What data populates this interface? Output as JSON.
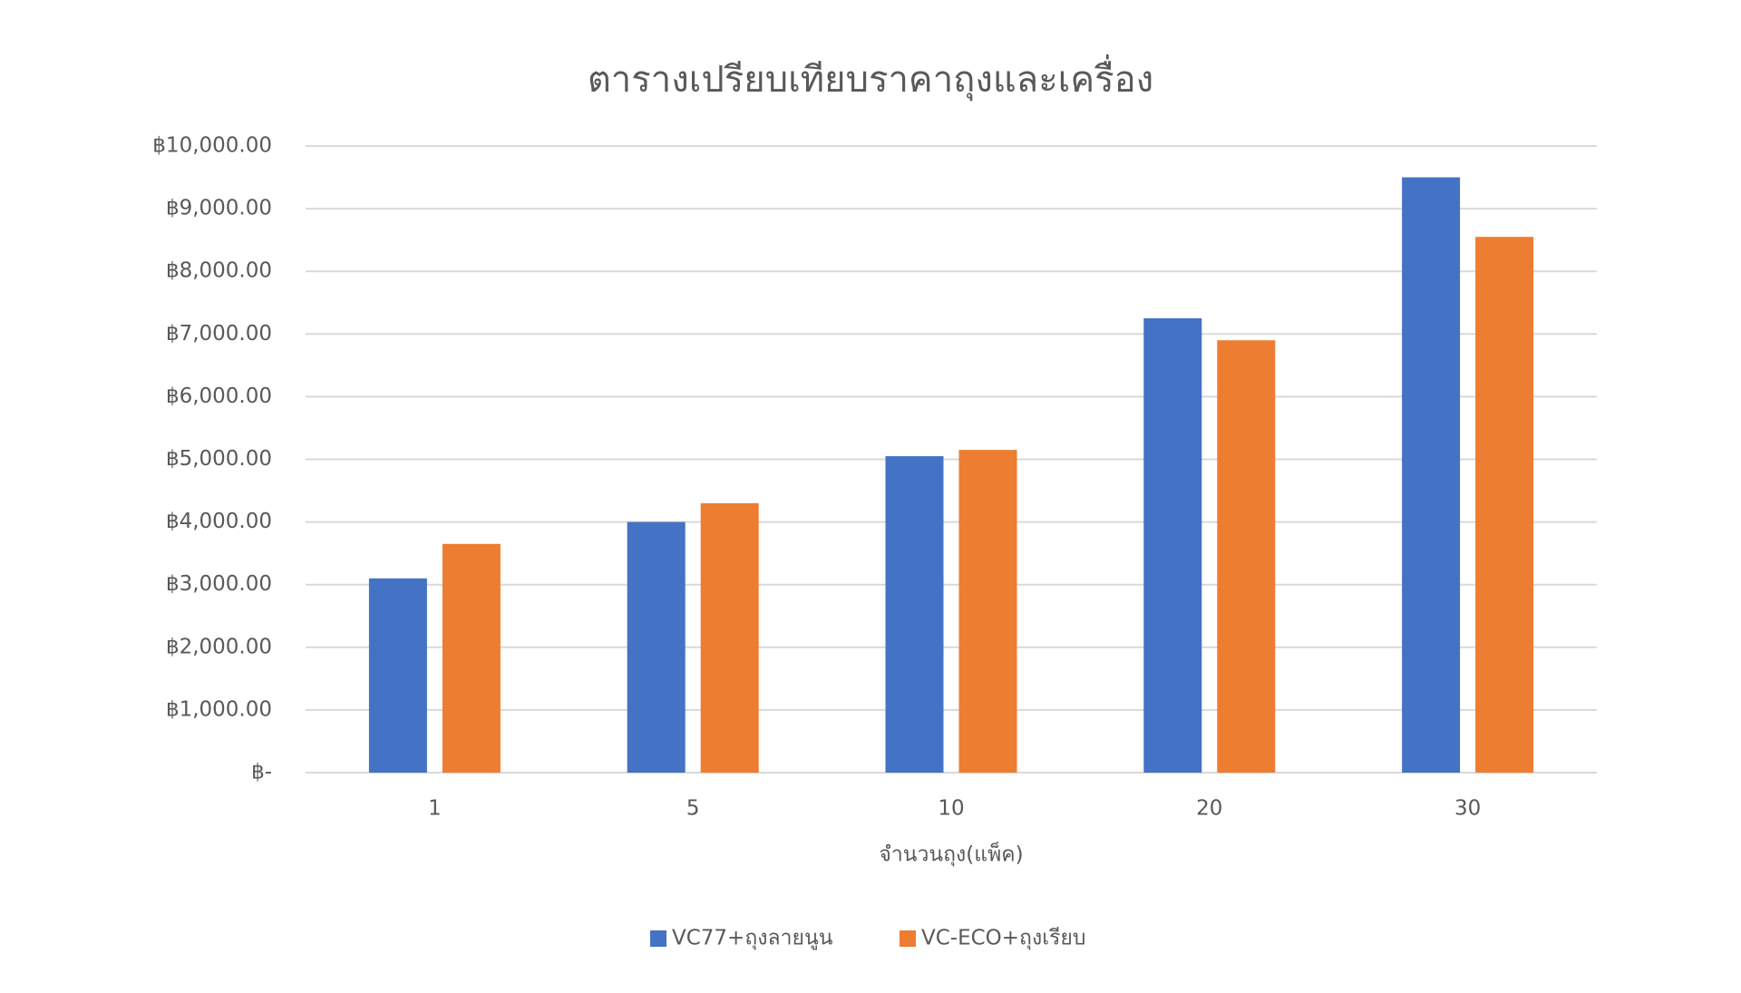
{
  "chart_data": {
    "type": "bar",
    "title": "ตารางเปรียบเทียบราคาถุงและเครื่อง",
    "x_label": "จำนวนถุง(แพ็ค)",
    "categories": [
      "1",
      "5",
      "10",
      "20",
      "30"
    ],
    "series": [
      {
        "name": "VC77+ถุงลายนูน",
        "color": "#4472c4",
        "values": [
          3100,
          4000,
          5050,
          7250,
          9500
        ]
      },
      {
        "name": "VC-ECO+ถุงเรียบ",
        "color": "#ed7d31",
        "values": [
          3650,
          4300,
          5150,
          6900,
          8550
        ]
      }
    ],
    "ylim": [
      0,
      10000
    ],
    "yticks": [
      {
        "value": 0,
        "label": "฿-"
      },
      {
        "value": 1000,
        "label": "฿1,000.00"
      },
      {
        "value": 2000,
        "label": "฿2,000.00"
      },
      {
        "value": 3000,
        "label": "฿3,000.00"
      },
      {
        "value": 4000,
        "label": "฿4,000.00"
      },
      {
        "value": 5000,
        "label": "฿5,000.00"
      },
      {
        "value": 6000,
        "label": "฿6,000.00"
      },
      {
        "value": 7000,
        "label": "฿7,000.00"
      },
      {
        "value": 8000,
        "label": "฿8,000.00"
      },
      {
        "value": 9000,
        "label": "฿9,000.00"
      },
      {
        "value": 10000,
        "label": "฿10,000.00"
      }
    ],
    "grid": true,
    "legend": "bottom"
  }
}
